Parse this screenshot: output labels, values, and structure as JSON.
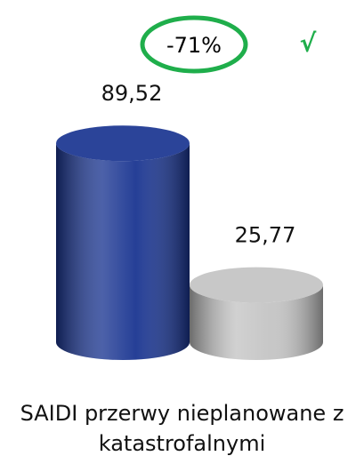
{
  "chart_data": {
    "type": "bar",
    "categories": [
      null,
      null
    ],
    "values": [
      89.52,
      25.77
    ],
    "value_labels": [
      "89,52",
      "25,77"
    ],
    "colors": [
      "#1a3591",
      "#c4c4c4"
    ],
    "x_label": "SAIDI przerwy nieplanowane z katastrofalnymi",
    "annotations": [
      "-71%",
      "√"
    ],
    "annotation_color": "#1fae4b"
  }
}
